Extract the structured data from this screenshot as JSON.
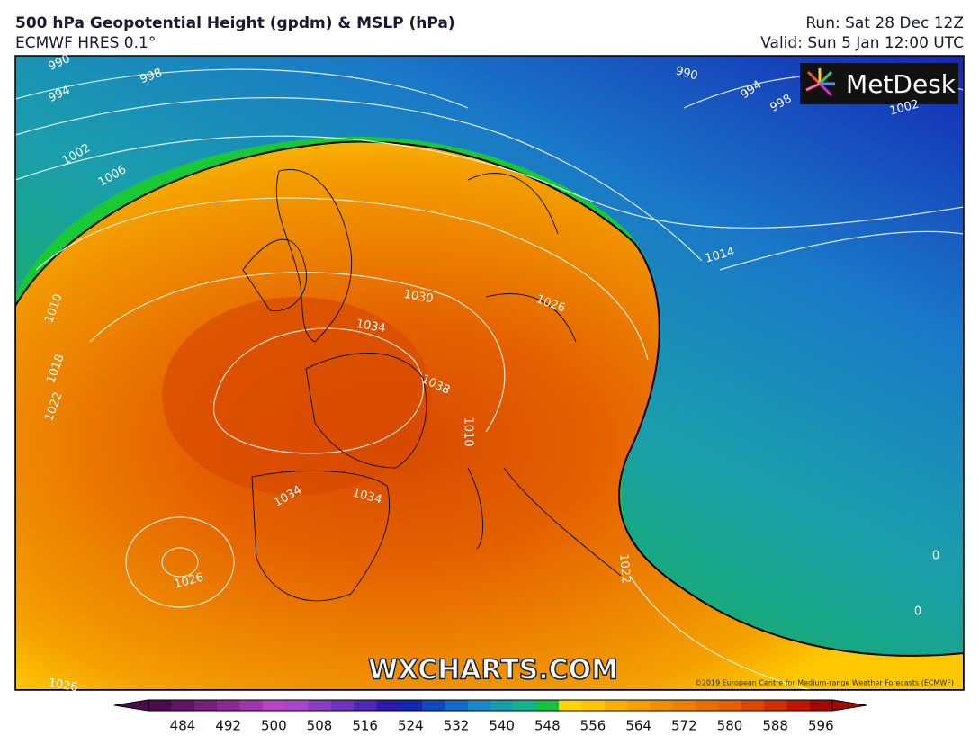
{
  "header": {
    "title": "500 hPa Geopotential Height (gpdm) & MSLP (hPa)",
    "model": "ECMWF HRES 0.1°",
    "run": "Run: Sat 28 Dec 12Z",
    "valid": "Valid: Sun 5 Jan 12:00 UTC"
  },
  "map": {
    "logo": "MetDesk",
    "watermark": "WXCHARTS.COM",
    "copyright": "©2019 European Centre for Medium-range Weather Forecasts (ECMWF)",
    "isobar_labels": [
      "990",
      "994",
      "998",
      "1002",
      "1006",
      "1010",
      "1018",
      "1022",
      "1030",
      "1034",
      "1038",
      "1010",
      "1034",
      "1034",
      "1026",
      "1026",
      "1026",
      "1022",
      "1014",
      "990",
      "994",
      "998",
      "1002",
      "0",
      "0"
    ]
  },
  "colorbar": {
    "colors": [
      "#4a0c4a",
      "#5e1660",
      "#742078",
      "#8a2a92",
      "#a036ac",
      "#b844c4",
      "#a646c8",
      "#8a3ec4",
      "#6e34bc",
      "#4e28b4",
      "#2c1cac",
      "#1428b4",
      "#1448c0",
      "#166ac8",
      "#1a88c4",
      "#1a9eac",
      "#18b088",
      "#1cc040",
      "#ffd400",
      "#ffc400",
      "#f8b000",
      "#f4a000",
      "#f09000",
      "#ec8000",
      "#e87000",
      "#e46000",
      "#dc4800",
      "#d03000",
      "#c01800",
      "#a00800"
    ],
    "ticks": [
      484,
      492,
      500,
      508,
      516,
      524,
      532,
      540,
      548,
      556,
      564,
      572,
      580,
      588,
      596
    ]
  }
}
